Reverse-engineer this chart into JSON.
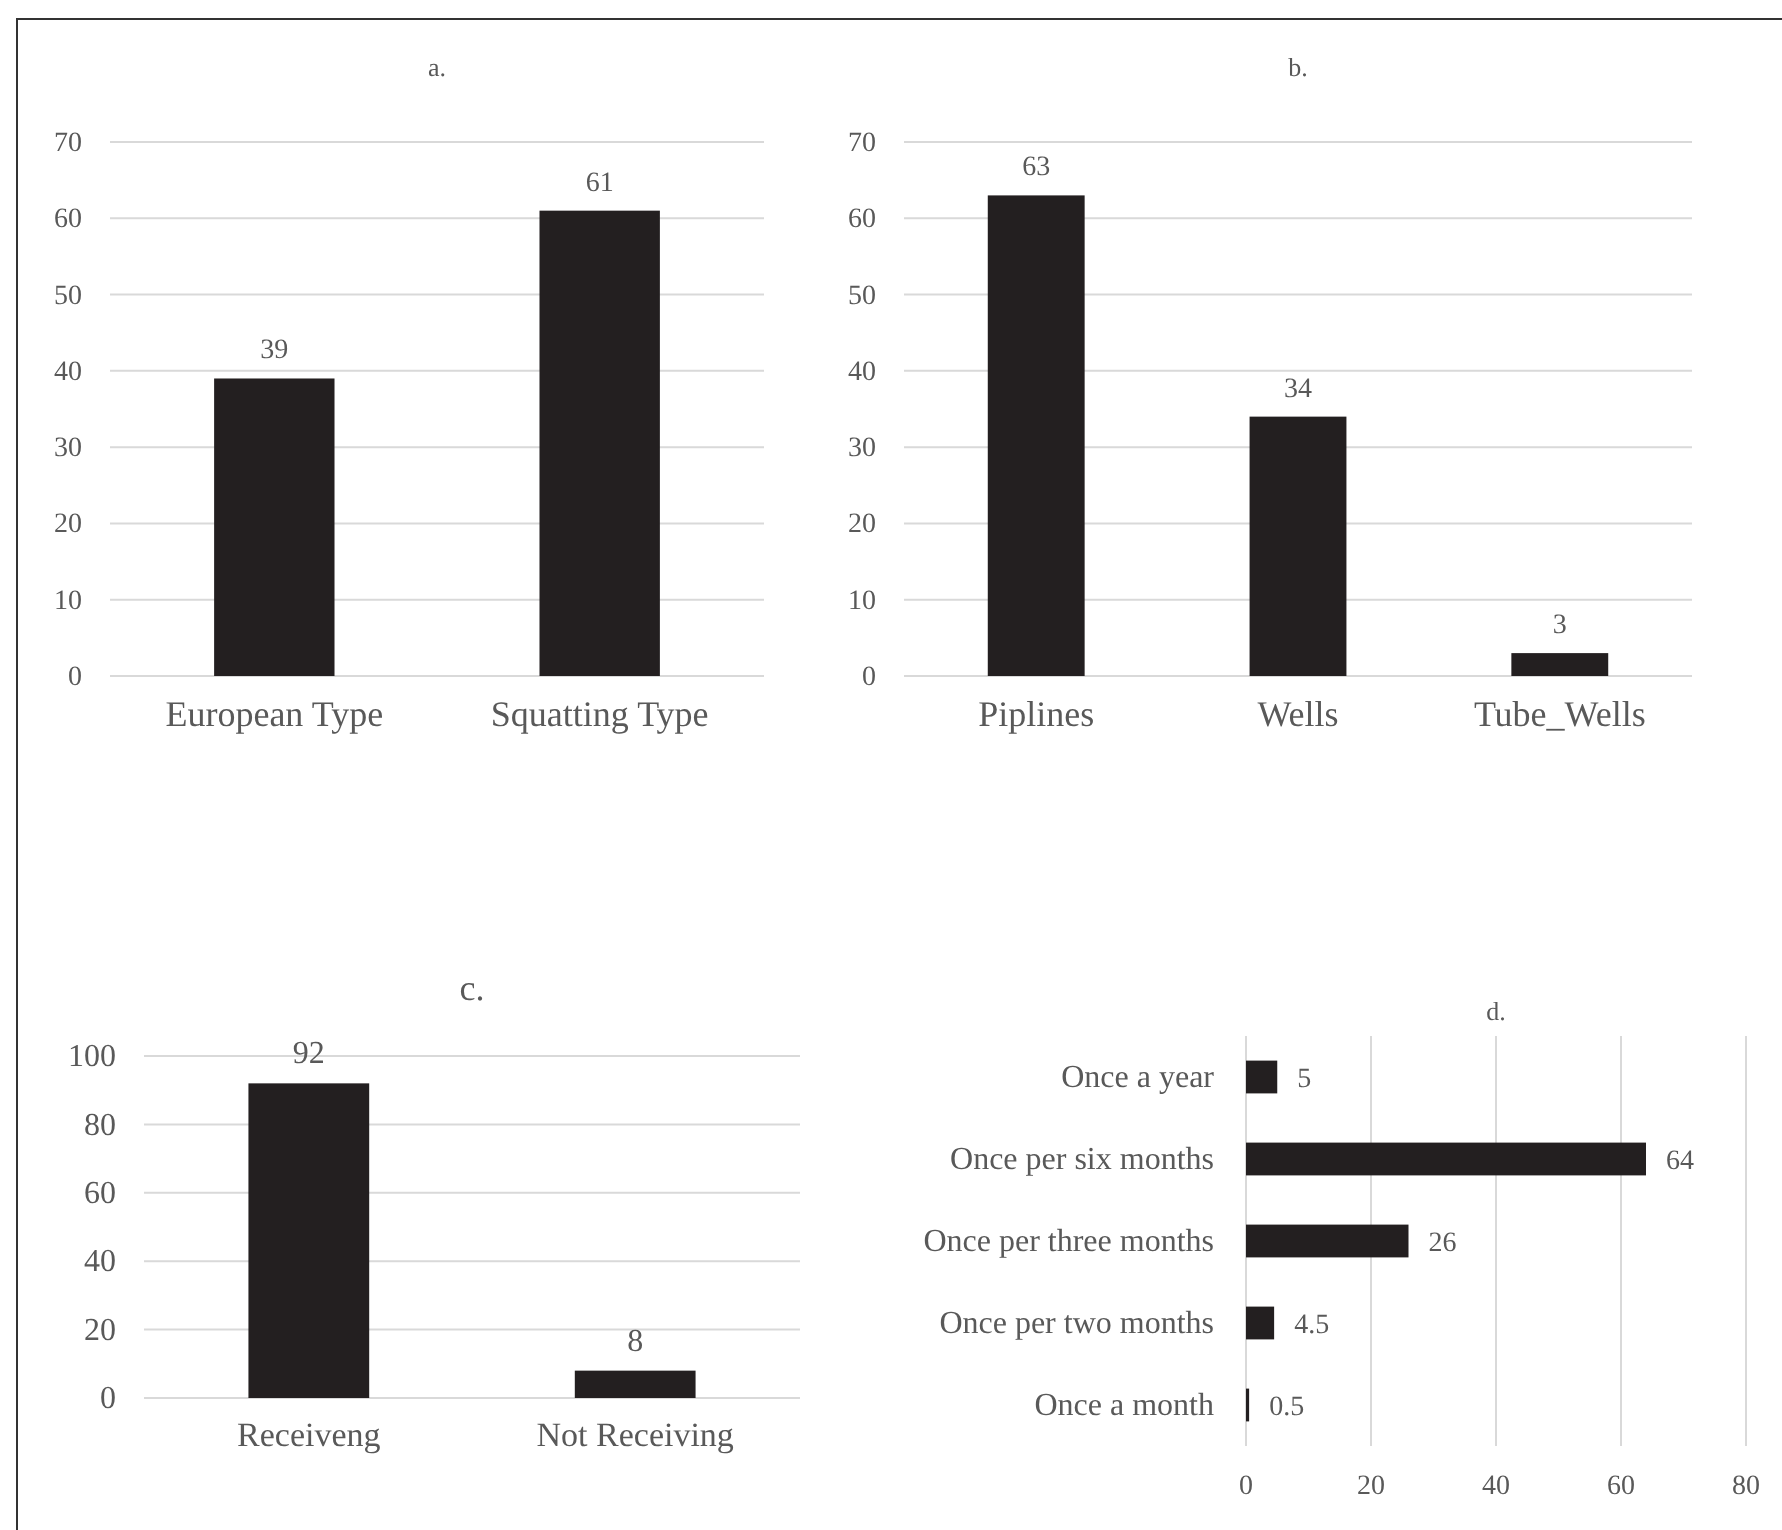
{
  "chart_data": [
    {
      "type": "bar",
      "title": "a.",
      "categories": [
        "European Type",
        "Squatting Type"
      ],
      "values": [
        39,
        61
      ],
      "color": "#231f20",
      "ylim": [
        0,
        70
      ],
      "yticks": [
        0,
        10,
        20,
        30,
        40,
        50,
        60,
        70
      ],
      "grid": "y",
      "data_labels": true
    },
    {
      "type": "bar",
      "title": "b.",
      "categories": [
        "Piplines",
        "Wells",
        "Tube_Wells"
      ],
      "values": [
        63,
        34,
        3
      ],
      "color": "#231f20",
      "ylim": [
        0,
        70
      ],
      "yticks": [
        0,
        10,
        20,
        30,
        40,
        50,
        60,
        70
      ],
      "grid": "y",
      "data_labels": true
    },
    {
      "type": "bar",
      "title": "c.",
      "categories": [
        "Receiveng",
        "Not Receiving"
      ],
      "values": [
        92,
        8
      ],
      "color": "#231f20",
      "ylim": [
        0,
        100
      ],
      "yticks": [
        0,
        20,
        40,
        60,
        80,
        100
      ],
      "grid": "y",
      "data_labels": true
    },
    {
      "type": "bar",
      "title": "d.",
      "orientation": "horizontal",
      "categories": [
        "Once a year",
        "Once per six months",
        "Once per three months",
        "Once per two months",
        "Once a month"
      ],
      "values": [
        5,
        64,
        26,
        4.5,
        0.5
      ],
      "color": "#231f20",
      "xlim": [
        0,
        80
      ],
      "xticks": [
        0,
        20,
        40,
        60,
        80
      ],
      "grid": "x",
      "data_labels": true
    }
  ]
}
